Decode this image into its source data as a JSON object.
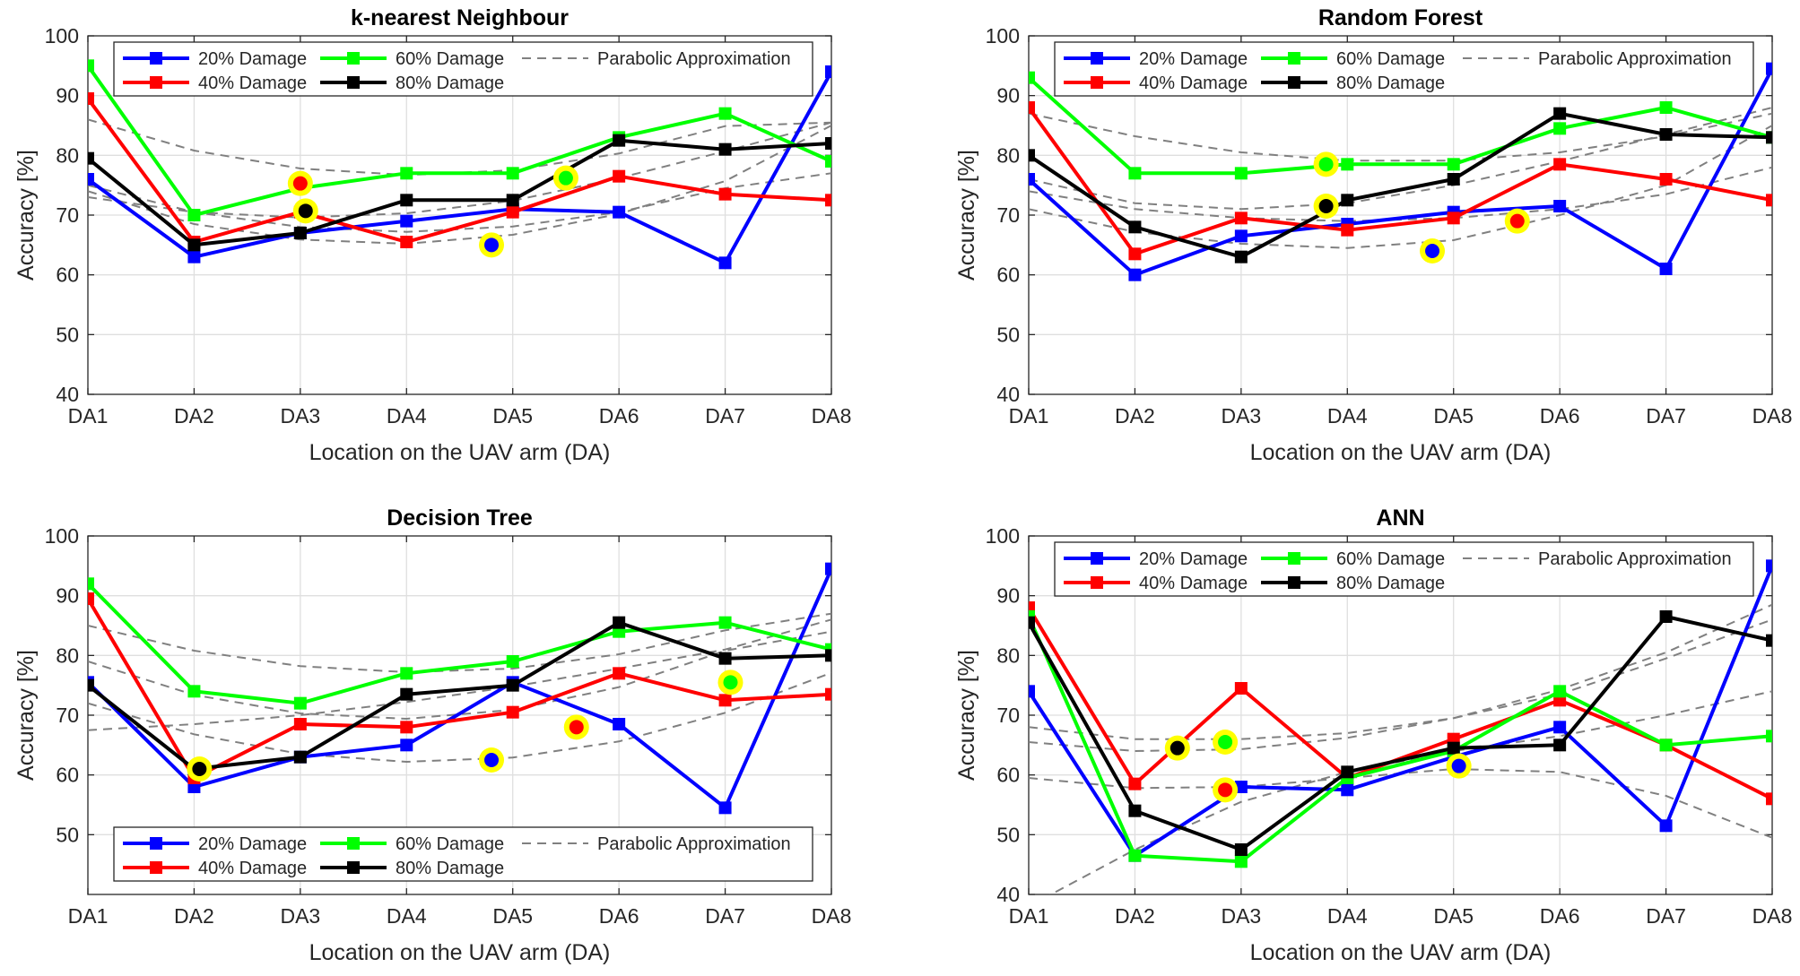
{
  "colors": {
    "d20": "#0000ff",
    "d40": "#ff0000",
    "d60": "#00ff00",
    "d80": "#000000",
    "parabolic": "#808080",
    "marker_ring": "#ffff00",
    "grid": "#dfdfdf"
  },
  "chart_data": [
    {
      "type": "line",
      "title": "k-nearest Neighbour",
      "xlabel": "Location on the UAV arm (DA)",
      "ylabel": "Accuracy [%]",
      "categories": [
        "DA1",
        "DA2",
        "DA3",
        "DA4",
        "DA5",
        "DA6",
        "DA7",
        "DA8"
      ],
      "ylim": [
        40,
        100
      ],
      "yticks": [
        40,
        50,
        60,
        70,
        80,
        90,
        100
      ],
      "grid": true,
      "legend_position": "top",
      "legend_labels": [
        "20% Damage",
        "40% Damage",
        "60% Damage",
        "80% Damage",
        "Parabolic Approximation"
      ],
      "series": [
        {
          "name": "20% Damage",
          "color": "#0000ff",
          "values": [
            76,
            63,
            67,
            69,
            71,
            70.5,
            62,
            94
          ]
        },
        {
          "name": "40% Damage",
          "color": "#ff0000",
          "values": [
            89.5,
            65.5,
            70.5,
            65.5,
            70.5,
            76.5,
            73.5,
            72.5
          ]
        },
        {
          "name": "60% Damage",
          "color": "#00ff00",
          "values": [
            95,
            70,
            74.5,
            77,
            77,
            83,
            87,
            79
          ]
        },
        {
          "name": "80% Damage",
          "color": "#000000",
          "values": [
            79.5,
            65,
            67,
            72.5,
            72.5,
            82.5,
            81,
            82
          ]
        }
      ],
      "parabolic_approximation": [
        {
          "series": "20% Damage",
          "values": [
            74,
            68.5,
            65.9,
            65.2,
            66.7,
            70.2,
            75.7,
            85
          ]
        },
        {
          "series": "40% Damage",
          "values": [
            75,
            70.5,
            68,
            67.2,
            68.1,
            70.5,
            74.5,
            77
          ]
        },
        {
          "series": "60% Damage",
          "values": [
            86,
            80.8,
            77.8,
            76.7,
            77.5,
            80.3,
            84.9,
            85.5
          ]
        },
        {
          "series": "80% Damage",
          "values": [
            73,
            70.5,
            69.6,
            70.3,
            72.4,
            76.2,
            80.7,
            85.5
          ]
        }
      ],
      "highlight_points": [
        {
          "series": "20% Damage",
          "x": 3.8,
          "y": 65
        },
        {
          "series": "40% Damage",
          "x": 2.0,
          "y": 75.3
        },
        {
          "series": "60% Damage",
          "x": 4.5,
          "y": 76.2
        },
        {
          "series": "80% Damage",
          "x": 2.05,
          "y": 70.7
        }
      ]
    },
    {
      "type": "line",
      "title": "Random Forest",
      "xlabel": "Location on the UAV arm (DA)",
      "ylabel": "Accuracy [%]",
      "categories": [
        "DA1",
        "DA2",
        "DA3",
        "DA4",
        "DA5",
        "DA6",
        "DA7",
        "DA8"
      ],
      "ylim": [
        40,
        100
      ],
      "yticks": [
        40,
        50,
        60,
        70,
        80,
        90,
        100
      ],
      "grid": true,
      "legend_position": "top",
      "legend_labels": [
        "20% Damage",
        "40% Damage",
        "60% Damage",
        "80% Damage",
        "Parabolic Approximation"
      ],
      "series": [
        {
          "name": "20% Damage",
          "color": "#0000ff",
          "values": [
            76,
            60,
            66.5,
            68.5,
            70.5,
            71.5,
            61,
            94.5
          ]
        },
        {
          "name": "40% Damage",
          "color": "#ff0000",
          "values": [
            88,
            63.5,
            69.5,
            67.5,
            69.5,
            78.5,
            76,
            72.5
          ]
        },
        {
          "name": "60% Damage",
          "color": "#00ff00",
          "values": [
            93,
            77,
            77,
            78.5,
            78.5,
            84.5,
            88,
            83
          ]
        },
        {
          "name": "80% Damage",
          "color": "#000000",
          "values": [
            80,
            68,
            63,
            72.5,
            76,
            87,
            83.5,
            83
          ]
        }
      ],
      "parabolic_approximation": [
        {
          "series": "20% Damage",
          "values": [
            71,
            67.2,
            65.2,
            64.5,
            65.8,
            70,
            75,
            85
          ]
        },
        {
          "series": "40% Damage",
          "values": [
            74,
            71,
            69.5,
            69,
            69.5,
            71,
            73.5,
            78
          ]
        },
        {
          "series": "60% Damage",
          "values": [
            87,
            83.2,
            80.5,
            79.1,
            79.1,
            80.5,
            83.2,
            87
          ]
        },
        {
          "series": "80% Damage",
          "values": [
            76,
            72,
            71,
            72,
            75,
            79,
            83.5,
            88
          ]
        }
      ],
      "highlight_points": [
        {
          "series": "20% Damage",
          "x": 3.8,
          "y": 64
        },
        {
          "series": "40% Damage",
          "x": 4.6,
          "y": 69
        },
        {
          "series": "60% Damage",
          "x": 2.8,
          "y": 78.5
        },
        {
          "series": "80% Damage",
          "x": 2.8,
          "y": 71.5
        }
      ]
    },
    {
      "type": "line",
      "title": "Decision Tree",
      "xlabel": "Location on the UAV arm (DA)",
      "ylabel": "Accuracy [%]",
      "categories": [
        "DA1",
        "DA2",
        "DA3",
        "DA4",
        "DA5",
        "DA6",
        "DA7",
        "DA8"
      ],
      "ylim": [
        40,
        100
      ],
      "yticks": [
        50,
        60,
        70,
        80,
        90,
        100
      ],
      "grid": true,
      "legend_position": "bottom",
      "legend_labels": [
        "20% Damage",
        "40% Damage",
        "60% Damage",
        "80% Damage",
        "Parabolic Approximation"
      ],
      "series": [
        {
          "name": "20% Damage",
          "color": "#0000ff",
          "values": [
            75.5,
            58,
            63,
            65,
            75.5,
            68.5,
            54.5,
            94.5
          ]
        },
        {
          "name": "40% Damage",
          "color": "#ff0000",
          "values": [
            89.5,
            59.5,
            68.5,
            68,
            70.5,
            77,
            72.5,
            73.5
          ]
        },
        {
          "name": "60% Damage",
          "color": "#00ff00",
          "values": [
            92,
            74,
            72,
            77,
            79,
            84,
            85.5,
            81
          ]
        },
        {
          "name": "80% Damage",
          "color": "#000000",
          "values": [
            75,
            61,
            63,
            73.5,
            75,
            85.5,
            79.5,
            80
          ]
        }
      ],
      "parabolic_approximation": [
        {
          "series": "20% Damage",
          "values": [
            72,
            66.8,
            63.5,
            62.2,
            62.9,
            65.6,
            70.4,
            77.1
          ]
        },
        {
          "series": "40% Damage",
          "values": [
            79,
            73.4,
            70.3,
            69.4,
            70.9,
            74.7,
            80.8,
            84
          ]
        },
        {
          "series": "60% Damage",
          "values": [
            85,
            80.8,
            78.2,
            77.2,
            77.8,
            80.2,
            84.2,
            87
          ]
        },
        {
          "series": "80% Damage",
          "values": [
            67.5,
            68.5,
            70,
            72.2,
            74.8,
            77.8,
            81,
            86
          ]
        }
      ],
      "highlight_points": [
        {
          "series": "20% Damage",
          "x": 3.8,
          "y": 62.5
        },
        {
          "series": "40% Damage",
          "x": 4.6,
          "y": 68
        },
        {
          "series": "60% Damage",
          "x": 6.05,
          "y": 75.5
        },
        {
          "series": "80% Damage",
          "x": 1.05,
          "y": 61
        }
      ]
    },
    {
      "type": "line",
      "title": "ANN",
      "xlabel": "Location on the UAV arm (DA)",
      "ylabel": "Accuracy [%]",
      "categories": [
        "DA1",
        "DA2",
        "DA3",
        "DA4",
        "DA5",
        "DA6",
        "DA7",
        "DA8"
      ],
      "ylim": [
        40,
        100
      ],
      "yticks": [
        40,
        50,
        60,
        70,
        80,
        90,
        100
      ],
      "grid": true,
      "legend_position": "top",
      "legend_labels": [
        "20% Damage",
        "40% Damage",
        "60% Damage",
        "80% Damage",
        "Parabolic Approximation"
      ],
      "series": [
        {
          "name": "20% Damage",
          "color": "#0000ff",
          "values": [
            74,
            46.5,
            58,
            57.5,
            63,
            68,
            51.5,
            95
          ]
        },
        {
          "name": "40% Damage",
          "color": "#ff0000",
          "values": [
            88,
            58.5,
            74.5,
            59.5,
            66,
            72.5,
            65,
            56
          ]
        },
        {
          "name": "60% Damage",
          "color": "#00ff00",
          "values": [
            86.5,
            46.5,
            45.5,
            59.5,
            64,
            74,
            65,
            66.5
          ]
        },
        {
          "name": "80% Damage",
          "color": "#000000",
          "values": [
            85.5,
            54,
            47.5,
            60.5,
            64.5,
            65,
            86.5,
            82.5
          ]
        }
      ],
      "parabolic_approximation": [
        {
          "series": "20% Damage",
          "values": [
            38,
            47.5,
            55.5,
            60.5,
            64,
            66.5,
            70,
            74
          ]
        },
        {
          "series": "40% Damage",
          "values": [
            59.5,
            57.8,
            58,
            59.5,
            61,
            60.5,
            56.5,
            49.5
          ]
        },
        {
          "series": "60% Damage",
          "values": [
            65.5,
            64,
            64.3,
            66.2,
            69.5,
            74.3,
            80.5,
            88.5
          ]
        },
        {
          "series": "80% Damage",
          "values": [
            68,
            66,
            66,
            67,
            69.5,
            73.5,
            79.5,
            86
          ]
        }
      ],
      "highlight_points": [
        {
          "series": "20% Damage",
          "x": 4.05,
          "y": 61.5
        },
        {
          "series": "40% Damage",
          "x": 1.85,
          "y": 57.5
        },
        {
          "series": "60% Damage",
          "x": 1.85,
          "y": 65.5
        },
        {
          "series": "80% Damage",
          "x": 1.4,
          "y": 64.5
        }
      ]
    }
  ]
}
